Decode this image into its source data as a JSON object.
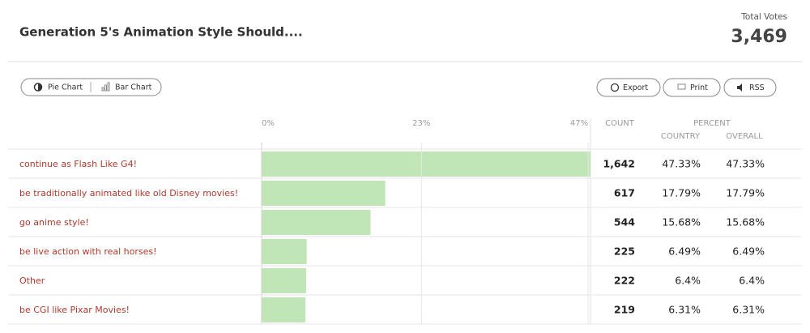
{
  "header": {
    "title": "Generation 5's Animation Style Should....",
    "total_label": "Total Votes",
    "total": "3,469"
  },
  "buttons": {
    "pie": "Pie Chart",
    "bar": "Bar Chart",
    "export": "Export",
    "print": "Print",
    "rss": "RSS"
  },
  "chart_data": {
    "type": "bar",
    "categories": [
      "continue as Flash Like G4!",
      "be traditionally animated like old Disney movies!",
      "go anime style!",
      "be live action with real horses!",
      "Other",
      "be CGI like Pixar Movies!"
    ],
    "values": [
      47.33,
      17.79,
      15.68,
      6.49,
      6.4,
      6.31
    ],
    "value_labels": [
      "47.33%",
      "17.79%",
      "15.68%",
      "6.49%",
      "6.4%",
      "6.31%"
    ],
    "color": "#c0e6b8",
    "xlim": [
      0,
      47.33
    ],
    "xticks": [
      {
        "value": 0,
        "label": "0%"
      },
      {
        "value": 23,
        "label": "23%"
      },
      {
        "value": 47,
        "label": "47%"
      }
    ],
    "grid": true,
    "columns": {
      "count": "COUNT",
      "percent": "PERCENT",
      "country": "COUNTRY",
      "overall": "OVERALL"
    },
    "counts": [
      1642,
      617,
      544,
      225,
      222,
      219
    ],
    "count_labels": [
      "1,642",
      "617",
      "544",
      "225",
      "222",
      "219"
    ],
    "country": [
      47.33,
      17.79,
      15.68,
      6.49,
      6.4,
      6.31
    ],
    "country_labels": [
      "47.33%",
      "17.79%",
      "15.68%",
      "6.49%",
      "6.4%",
      "6.31%"
    ]
  }
}
